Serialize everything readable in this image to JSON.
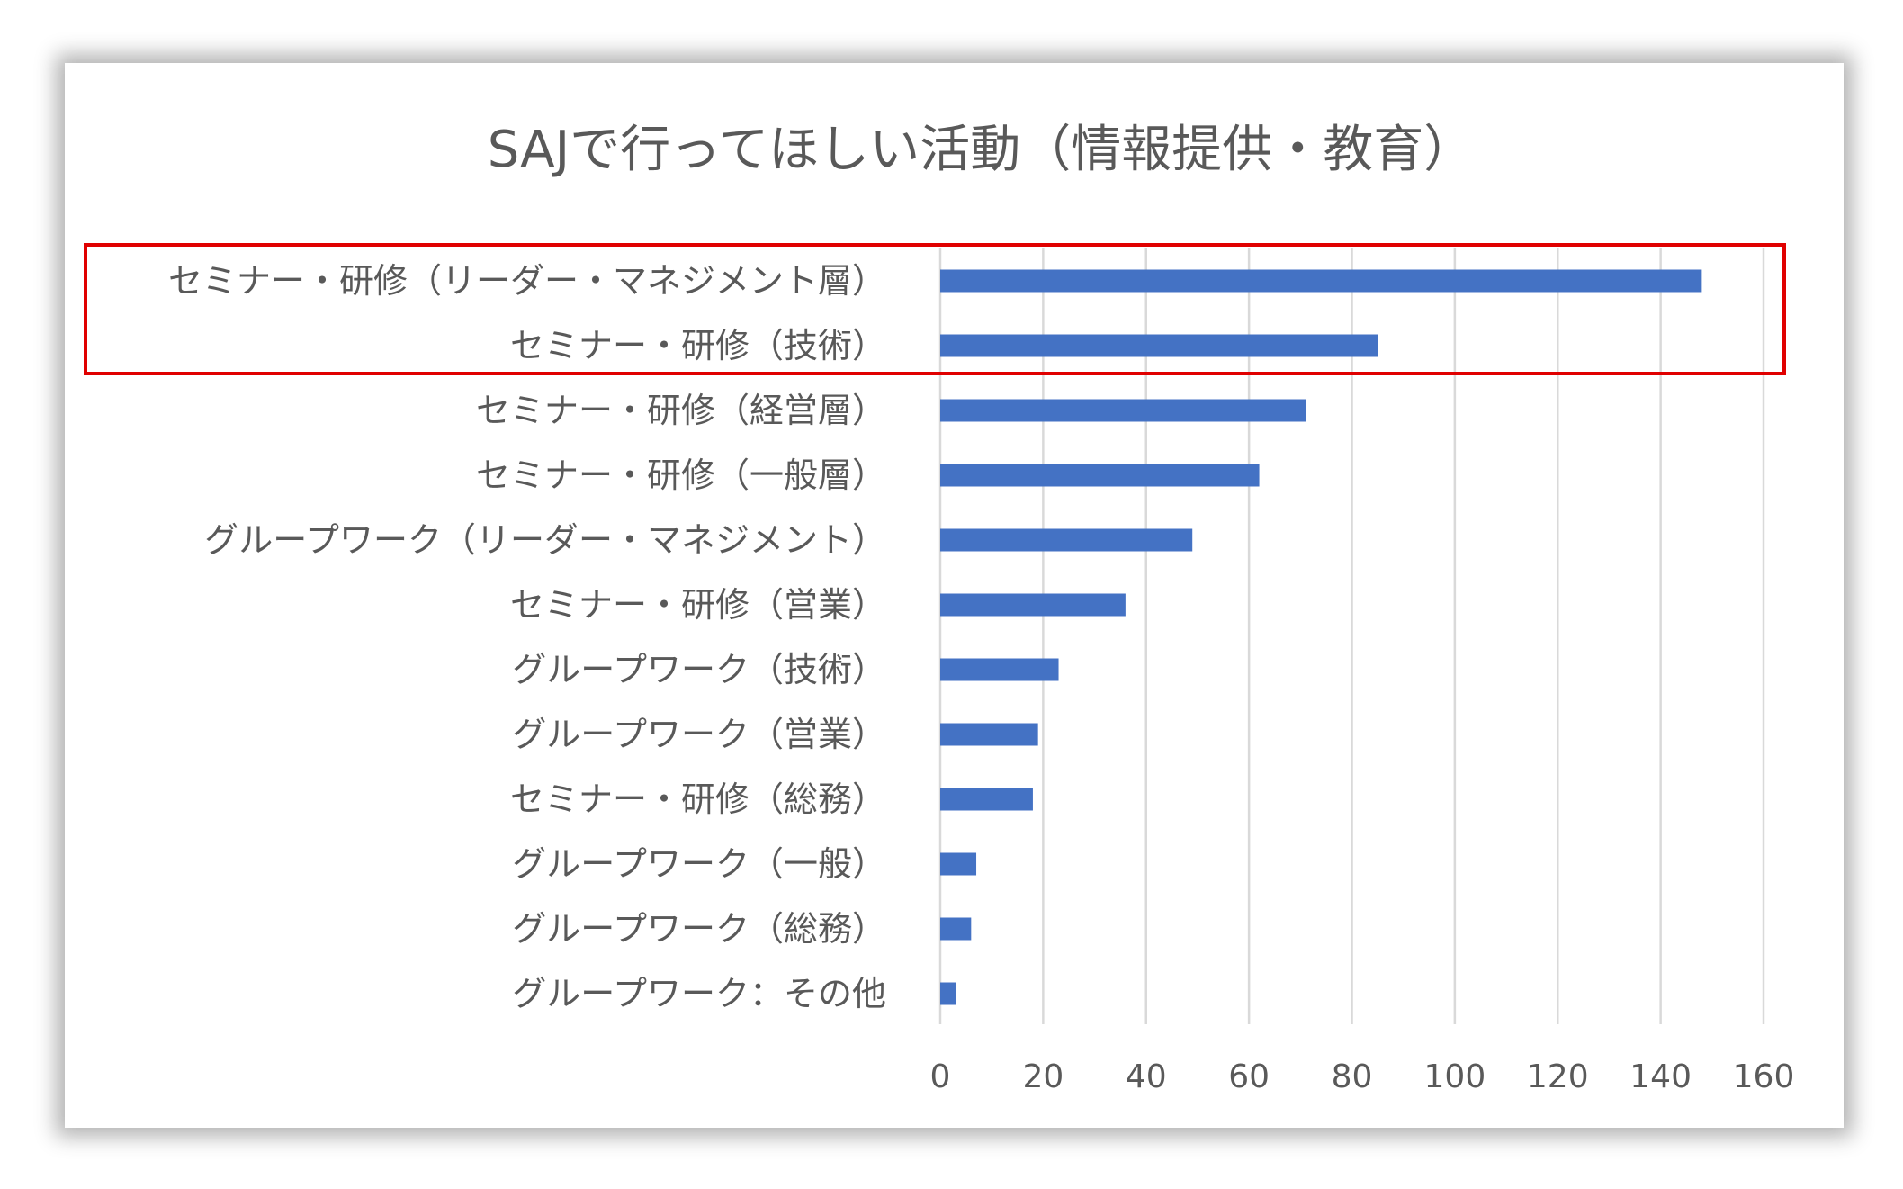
{
  "chart_data": {
    "type": "bar",
    "orientation": "horizontal",
    "title": "SAJで行ってほしい活動（情報提供・教育）",
    "xlabel": "",
    "ylabel": "",
    "xlim": [
      0,
      160
    ],
    "ticks": [
      0,
      20,
      40,
      60,
      80,
      100,
      120,
      140,
      160
    ],
    "tick_labels": [
      "0",
      "20",
      "40",
      "60",
      "80",
      "100",
      "120",
      "140",
      "160"
    ],
    "grid": "vertical",
    "legend": "none",
    "categories": [
      "セミナー・研修（リーダー・マネジメント層）",
      "セミナー・研修（技術）",
      "セミナー・研修（経営層）",
      "セミナー・研修（一般層）",
      "グループワーク（リーダー・マネジメント）",
      "セミナー・研修（営業）",
      "グループワーク（技術）",
      "グループワーク（営業）",
      "セミナー・研修（総務）",
      "グループワーク（一般）",
      "グループワーク（総務）",
      "グループワーク：その他"
    ],
    "values": [
      148,
      85,
      71,
      62,
      49,
      36,
      23,
      19,
      18,
      7,
      6,
      3
    ],
    "highlight": {
      "categories": [
        "セミナー・研修（リーダー・マネジメント層）",
        "セミナー・研修（技術）"
      ],
      "color": "#e00000"
    }
  },
  "colors": {
    "bar": "#4472c4",
    "grid": "#d9d9d9",
    "text": "#595959",
    "highlight_box": "#e00000"
  }
}
